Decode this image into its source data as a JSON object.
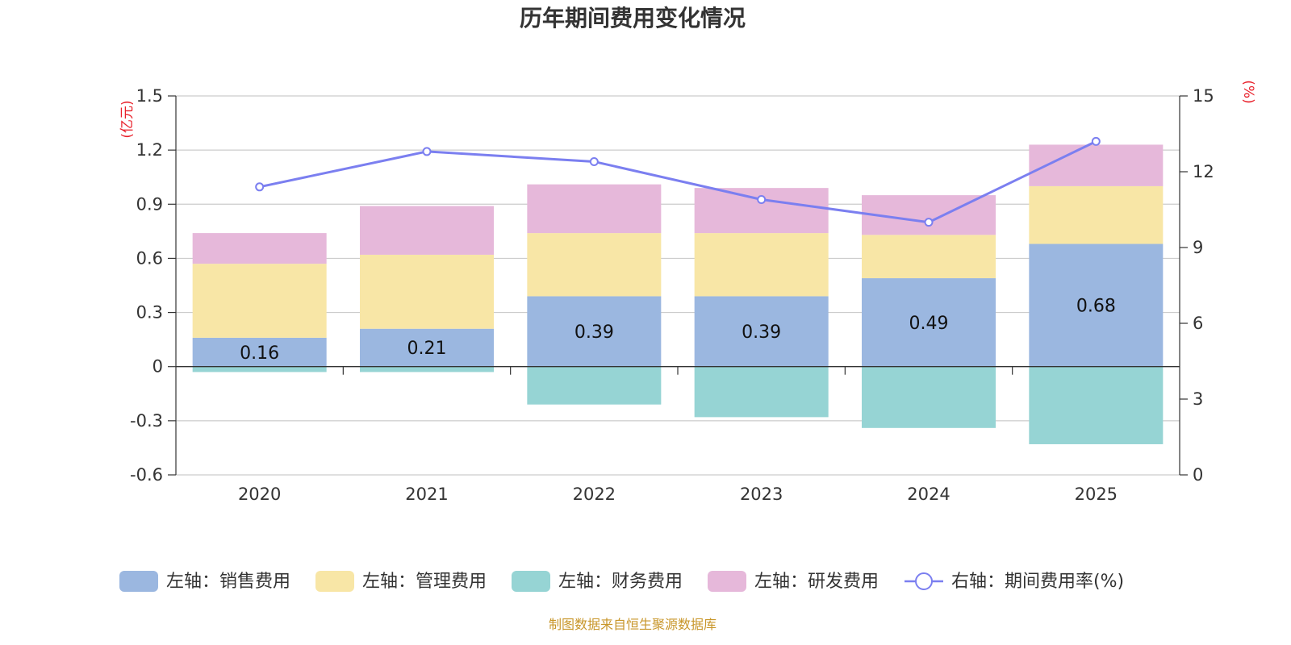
{
  "chart_data": {
    "type": "bar",
    "stacked": true,
    "title": "历年期间费用变化情况",
    "categories": [
      "2020",
      "2021",
      "2022",
      "2023",
      "2024",
      "2025"
    ],
    "left_axis": {
      "unit": "(亿元)",
      "min": -0.6,
      "max": 1.5,
      "ticks": [
        -0.6,
        -0.3,
        0,
        0.3,
        0.6,
        0.9,
        1.2,
        1.5
      ],
      "tick_labels": [
        "-0.6",
        "-0.3",
        "0",
        "0.3",
        "0.6",
        "0.9",
        "1.2",
        "1.5"
      ]
    },
    "right_axis": {
      "unit": "(%)",
      "min": 0,
      "max": 15,
      "ticks": [
        0,
        3,
        6,
        9,
        12,
        15
      ],
      "tick_labels": [
        "0",
        "3",
        "6",
        "9",
        "12",
        "15"
      ]
    },
    "series": [
      {
        "name": "左轴：销售费用",
        "axis": "left",
        "type": "bar",
        "color": "#9bb7e0",
        "values": [
          0.16,
          0.21,
          0.39,
          0.39,
          0.49,
          0.68
        ],
        "labels": [
          "0.16",
          "0.21",
          "0.39",
          "0.39",
          "0.49",
          "0.68"
        ]
      },
      {
        "name": "左轴：管理费用",
        "axis": "left",
        "type": "bar",
        "color": "#f8e6a6",
        "values": [
          0.41,
          0.41,
          0.35,
          0.35,
          0.24,
          0.32
        ]
      },
      {
        "name": "左轴：财务费用",
        "axis": "left",
        "type": "bar",
        "color": "#96d4d4",
        "values": [
          -0.03,
          -0.03,
          -0.21,
          -0.28,
          -0.34,
          -0.43
        ]
      },
      {
        "name": "左轴：研发费用",
        "axis": "left",
        "type": "bar",
        "color": "#e6b8da",
        "values": [
          0.17,
          0.27,
          0.27,
          0.25,
          0.22,
          0.23
        ]
      },
      {
        "name": "右轴：期间费用率(%)",
        "axis": "right",
        "type": "line",
        "color": "#7b7ff0",
        "values": [
          11.4,
          12.8,
          12.4,
          10.9,
          10.0,
          13.2
        ]
      }
    ],
    "grid": true,
    "legend_position": "bottom"
  },
  "source_text": "制图数据来自恒生聚源数据库"
}
